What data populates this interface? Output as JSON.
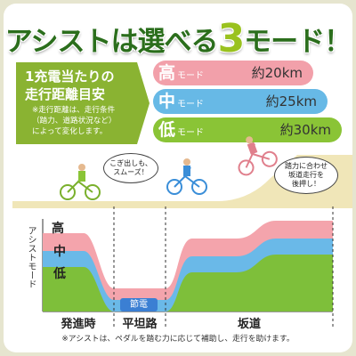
{
  "title": {
    "part1": "アシストは選べる",
    "number": "3",
    "part2": "モード！"
  },
  "info": {
    "heading_line1": "1充電当たりの",
    "heading_line2": "走行距離目安",
    "note_line1": "※走行距離は、走行条件",
    "note_line2": "（踏力、道路状況など）",
    "note_line3": "によって変化します。"
  },
  "modes": [
    {
      "kanji": "高",
      "suffix": "モード",
      "distance": "約20km",
      "color": "#f2a0aa"
    },
    {
      "kanji": "中",
      "suffix": "モード",
      "distance": "約25km",
      "color": "#67b9e6"
    },
    {
      "kanji": "低",
      "suffix": "モード",
      "distance": "約30km",
      "color": "#8ac436"
    }
  ],
  "bubbles": {
    "start": {
      "line1": "こぎ出しも、",
      "line2": "スムーズ！"
    },
    "slope": {
      "line1": "踏力に合わせ",
      "line2": "坂道走行を",
      "line3": "後押し！"
    }
  },
  "chart": {
    "y_label": "アシストモード",
    "levels": [
      "高",
      "中",
      "低"
    ],
    "sections": [
      "発進時",
      "平坦路",
      "坂道"
    ],
    "savings_label": "節電",
    "colors": {
      "high": "#f4a4ac",
      "mid": "#6ab9e8",
      "low": "#7ebf3a",
      "savings": "#3b7fd3"
    }
  },
  "footnote": "※アシストは、ペダルを踏む力に応じて補助し、走行を助けます。"
}
